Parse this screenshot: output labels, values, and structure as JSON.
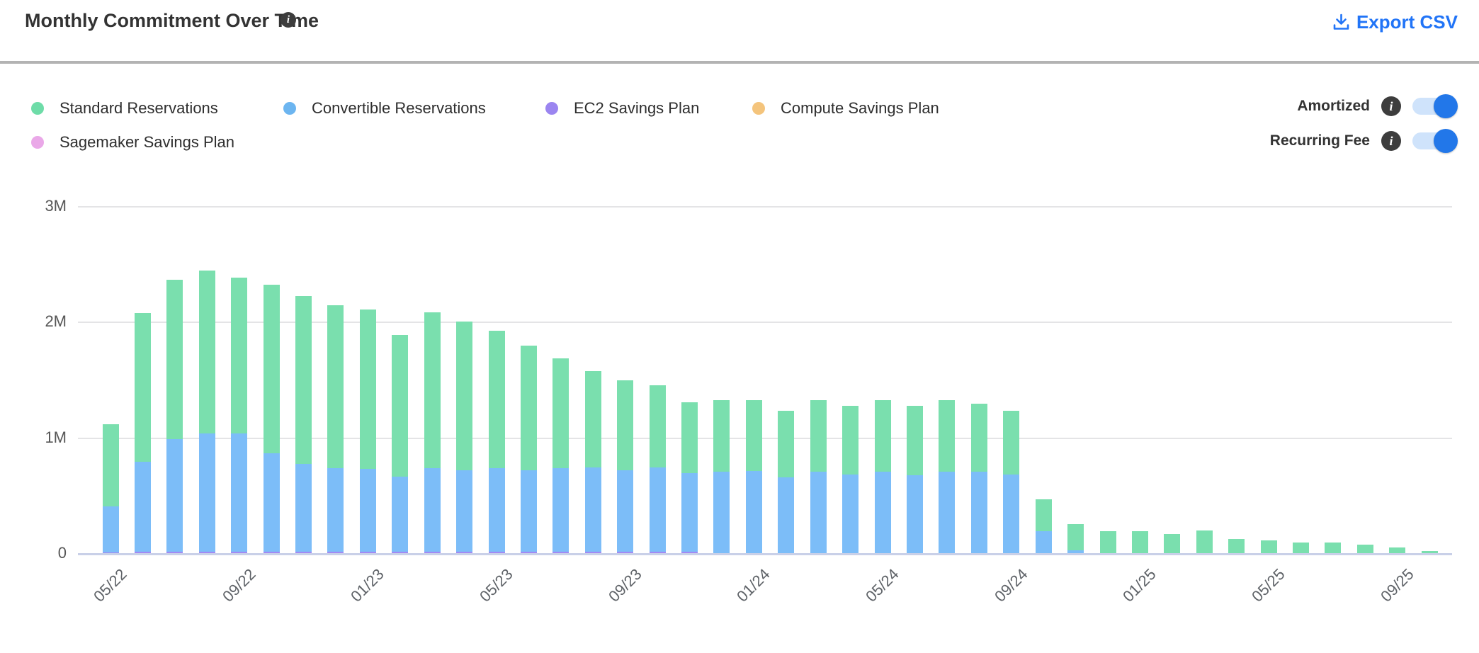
{
  "header": {
    "title": "Monthly Commitment Over Time",
    "title_info_icon": "i",
    "export_label": "Export CSV"
  },
  "legend": {
    "items": [
      {
        "label": "Standard Reservations",
        "color": "#6edca8"
      },
      {
        "label": "Convertible Reservations",
        "color": "#6cb5f0"
      },
      {
        "label": "EC2 Savings Plan",
        "color": "#9b85f0"
      },
      {
        "label": "Compute Savings Plan",
        "color": "#f4c47c"
      },
      {
        "label": "Sagemaker Savings Plan",
        "color": "#eaa8e8"
      }
    ]
  },
  "toggles": [
    {
      "label": "Amortized",
      "info_icon": "i",
      "state": "on"
    },
    {
      "label": "Recurring Fee",
      "info_icon": "i",
      "state": "on"
    }
  ],
  "colors": {
    "accent_blue": "#2174f7",
    "toggle_track": "#cfe3fb",
    "toggle_knob": "#2277e9",
    "bar_green": "#7adfae",
    "bar_blue": "#7cbdf8",
    "bar_purple": "#a18af5",
    "gridline": "#e4e4e6",
    "axis_line": "#c9d0e8",
    "axis_text": "#5f6368"
  },
  "chart_data": {
    "type": "bar",
    "stacked": true,
    "unit": "M (millions USD)",
    "x": [
      "05/22",
      "06/22",
      "07/22",
      "08/22",
      "09/22",
      "10/22",
      "11/22",
      "12/22",
      "01/23",
      "02/23",
      "03/23",
      "04/23",
      "05/23",
      "06/23",
      "07/23",
      "08/23",
      "09/23",
      "10/23",
      "11/23",
      "12/23",
      "01/24",
      "02/24",
      "03/24",
      "04/24",
      "05/24",
      "06/24",
      "07/24",
      "08/24",
      "09/24",
      "10/24",
      "11/24",
      "12/24",
      "01/25",
      "02/25",
      "03/25",
      "04/25",
      "05/25",
      "06/25",
      "07/25",
      "08/25",
      "09/25",
      "10/25"
    ],
    "x_tick_labels": [
      "05/22",
      "09/22",
      "01/23",
      "05/23",
      "09/23",
      "01/24",
      "05/24",
      "09/24",
      "01/25",
      "05/25",
      "09/25"
    ],
    "x_tick_every": 4,
    "y_ticks": [
      {
        "value": 0,
        "label": "0"
      },
      {
        "value": 1,
        "label": "1M"
      },
      {
        "value": 2,
        "label": "2M"
      },
      {
        "value": 3,
        "label": "3M"
      }
    ],
    "ylim": [
      0,
      3
    ],
    "legend_position": "top-left",
    "grid": "horizontal",
    "stack_order_bottom_to_top": [
      "EC2 Savings Plan",
      "Convertible Reservations",
      "Standard Reservations",
      "Compute Savings Plan",
      "Sagemaker Savings Plan"
    ],
    "series": [
      {
        "name": "Standard Reservations",
        "color": "#7adfae",
        "values": [
          0.71,
          1.285,
          1.38,
          1.41,
          1.35,
          1.46,
          1.45,
          1.41,
          1.375,
          1.225,
          1.35,
          1.29,
          1.19,
          1.08,
          0.95,
          0.835,
          0.78,
          0.71,
          0.61,
          0.62,
          0.615,
          0.58,
          0.62,
          0.595,
          0.62,
          0.6,
          0.62,
          0.59,
          0.555,
          0.275,
          0.222,
          0.197,
          0.195,
          0.174,
          0.2,
          0.127,
          0.115,
          0.1,
          0.1,
          0.078,
          0.053,
          0.022
        ]
      },
      {
        "name": "Convertible Reservations",
        "color": "#7cbdf8",
        "values": [
          0.4,
          0.775,
          0.97,
          1.02,
          1.02,
          0.85,
          0.76,
          0.72,
          0.715,
          0.645,
          0.72,
          0.7,
          0.72,
          0.7,
          0.72,
          0.725,
          0.7,
          0.725,
          0.68,
          0.71,
          0.715,
          0.66,
          0.71,
          0.685,
          0.71,
          0.68,
          0.71,
          0.71,
          0.685,
          0.195,
          0.033,
          0,
          0,
          0,
          0,
          0,
          0,
          0,
          0,
          0,
          0,
          0
        ]
      },
      {
        "name": "EC2 Savings Plan",
        "color": "#a18af5",
        "values": [
          0.012,
          0.02,
          0.02,
          0.02,
          0.02,
          0.02,
          0.02,
          0.02,
          0.02,
          0.02,
          0.02,
          0.02,
          0.02,
          0.02,
          0.02,
          0.02,
          0.02,
          0.02,
          0.02,
          0,
          0,
          0,
          0,
          0,
          0,
          0,
          0,
          0,
          0,
          0,
          0,
          0,
          0,
          0,
          0,
          0,
          0,
          0,
          0,
          0,
          0,
          0
        ]
      },
      {
        "name": "Compute Savings Plan",
        "color": "#f4c47c",
        "values": [
          0,
          0,
          0,
          0,
          0,
          0,
          0,
          0,
          0,
          0,
          0,
          0,
          0,
          0,
          0,
          0,
          0,
          0,
          0,
          0,
          0,
          0,
          0,
          0,
          0,
          0,
          0,
          0,
          0,
          0,
          0,
          0,
          0,
          0,
          0,
          0,
          0,
          0,
          0,
          0,
          0,
          0
        ]
      },
      {
        "name": "Sagemaker Savings Plan",
        "color": "#eaa8e8",
        "values": [
          0,
          0,
          0,
          0,
          0,
          0,
          0,
          0,
          0,
          0,
          0,
          0,
          0,
          0,
          0,
          0,
          0,
          0,
          0,
          0,
          0,
          0,
          0,
          0,
          0,
          0,
          0,
          0,
          0,
          0,
          0,
          0,
          0,
          0,
          0,
          0,
          0,
          0,
          0,
          0,
          0,
          0
        ]
      }
    ],
    "title": "Monthly Commitment Over Time"
  }
}
